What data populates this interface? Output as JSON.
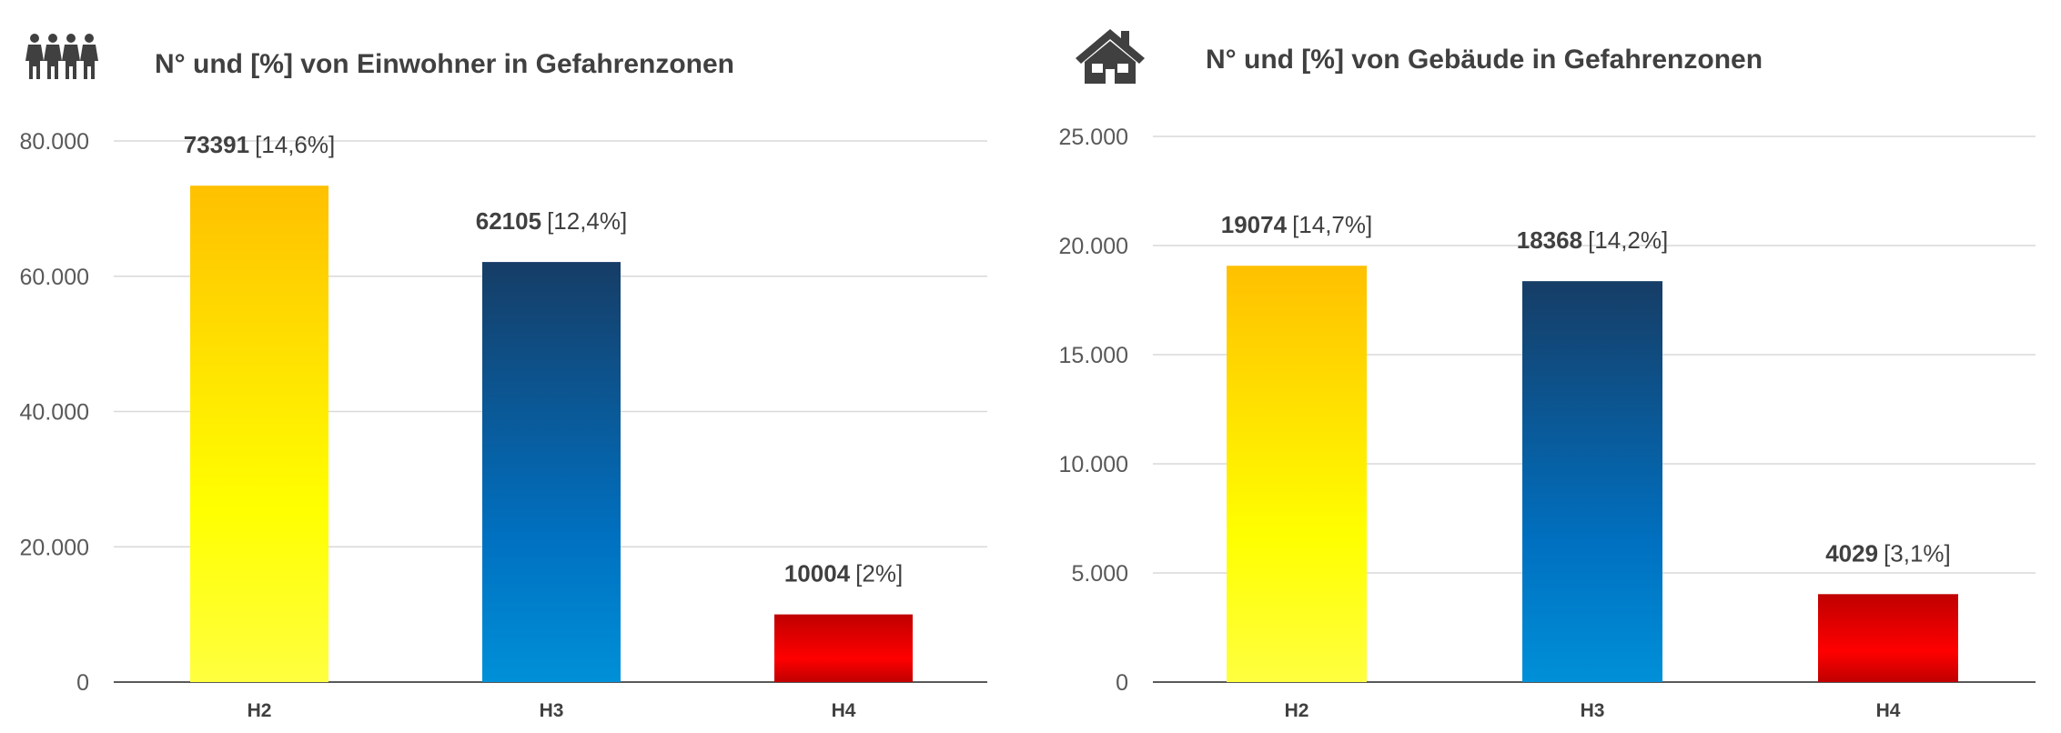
{
  "chart_data": [
    {
      "type": "bar",
      "title": "N° und [%] von Einwohner in Gefahrenzonen",
      "icon": "people-icon",
      "categories": [
        "H2",
        "H3",
        "H4"
      ],
      "values": [
        73391,
        62105,
        10004
      ],
      "data_labels": [
        {
          "value": "73391",
          "percent": "[14,6%]"
        },
        {
          "value": "62105",
          "percent": "[12,4%]"
        },
        {
          "value": "10004",
          "percent": "[2%]"
        }
      ],
      "yticks": [
        "0",
        "20.000",
        "40.000",
        "60.000",
        "80.000"
      ],
      "ylim": [
        0,
        80000
      ],
      "bar_gradients": [
        [
          "#ffc000",
          "#ffff00",
          "#ffff40"
        ],
        [
          "#163d66",
          "#0070c0",
          "#0090d8"
        ],
        [
          "#c00000",
          "#ff0000",
          "#c00000"
        ]
      ],
      "grid": true
    },
    {
      "type": "bar",
      "title": "N° und [%] von Gebäude in Gefahrenzonen",
      "icon": "house-icon",
      "categories": [
        "H2",
        "H3",
        "H4"
      ],
      "values": [
        19074,
        18368,
        4029
      ],
      "data_labels": [
        {
          "value": "19074",
          "percent": "[14,7%]"
        },
        {
          "value": "18368",
          "percent": "[14,2%]"
        },
        {
          "value": "4029",
          "percent": "[3,1%]"
        }
      ],
      "yticks": [
        "0",
        "5.000",
        "10.000",
        "15.000",
        "20.000",
        "25.000"
      ],
      "ylim": [
        0,
        25000
      ],
      "bar_gradients": [
        [
          "#ffc000",
          "#ffff00",
          "#ffff40"
        ],
        [
          "#163d66",
          "#0070c0",
          "#0090d8"
        ],
        [
          "#c00000",
          "#ff0000",
          "#c00000"
        ]
      ],
      "grid": true
    }
  ]
}
